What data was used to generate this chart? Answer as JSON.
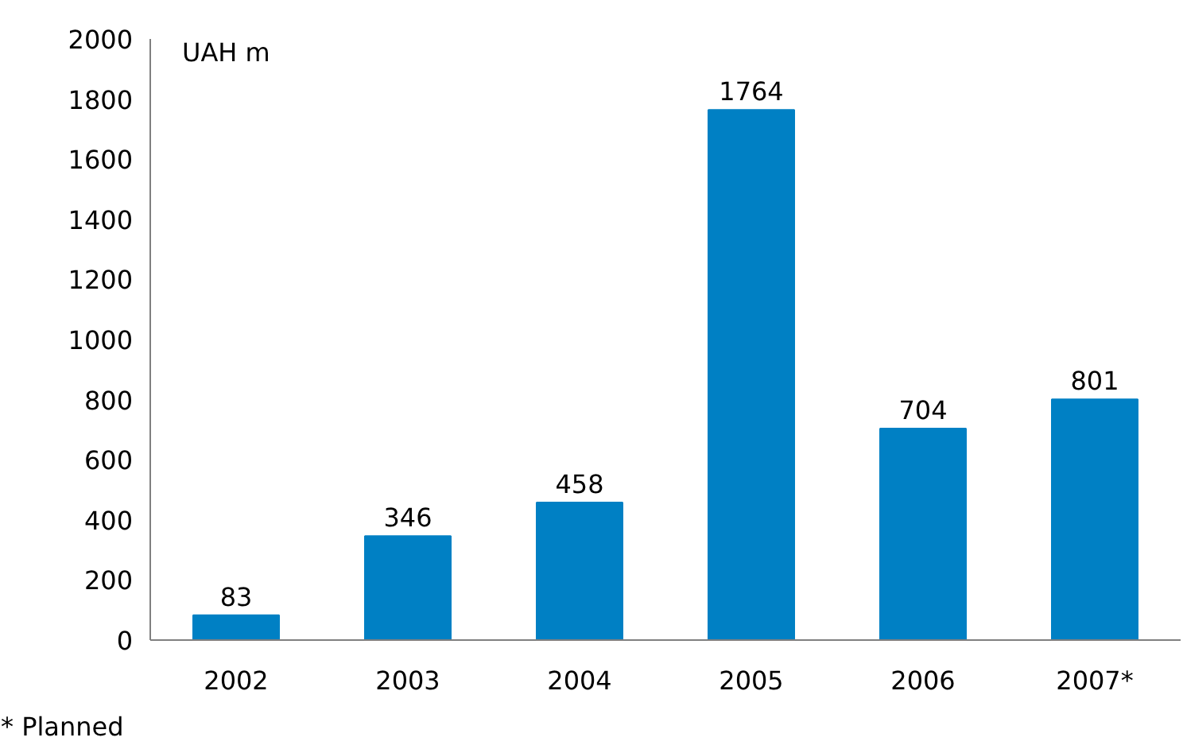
{
  "chart_data": {
    "type": "bar",
    "ylabel": "UAH m",
    "categories": [
      "2002",
      "2003",
      "2004",
      "2005",
      "2006",
      "2007*"
    ],
    "values": [
      83,
      346,
      458,
      1764,
      704,
      801
    ],
    "color": "#0080c4",
    "ylim": [
      0,
      2000
    ],
    "yticks": [
      0,
      200,
      400,
      600,
      800,
      1000,
      1200,
      1400,
      1600,
      1800,
      2000
    ],
    "data_labels": true,
    "annotations": [
      "* Planned"
    ]
  }
}
